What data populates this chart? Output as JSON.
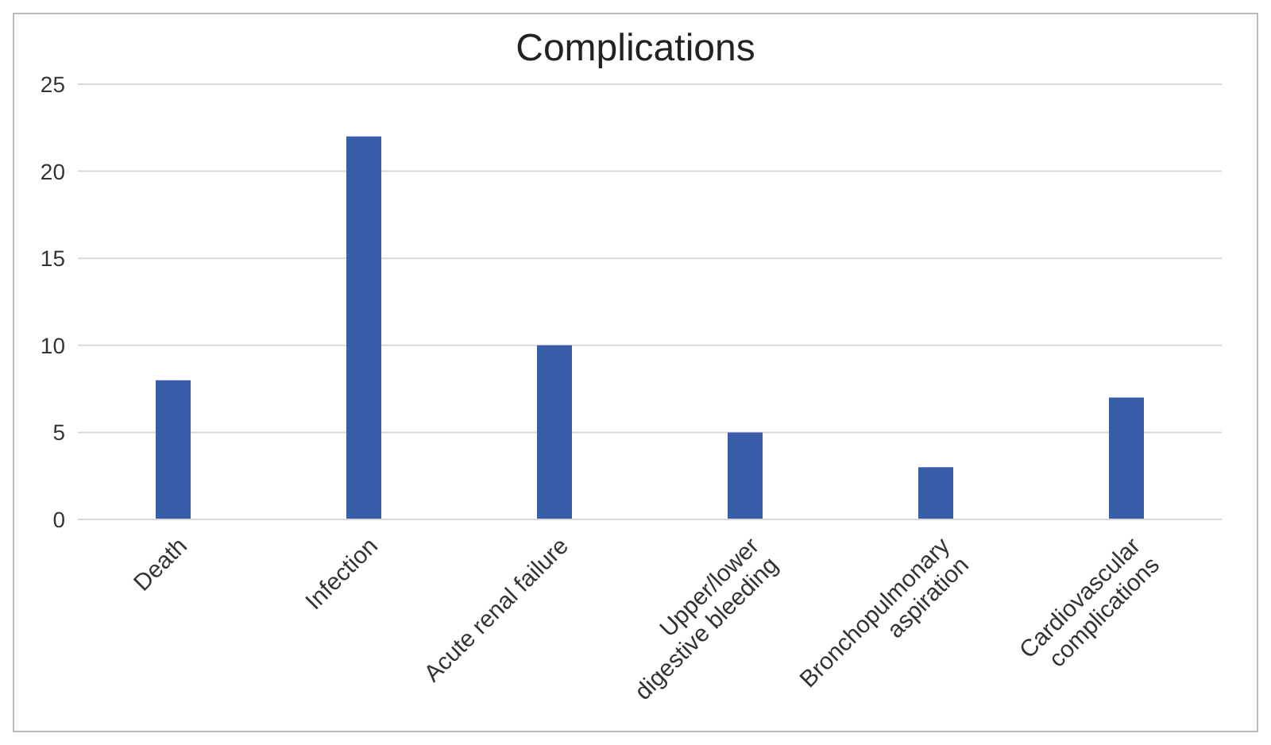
{
  "chart_data": {
    "type": "bar",
    "title": "Complications",
    "categories": [
      "Death",
      "Infection",
      "Acute renal failure",
      "Upper/lower digestive bleeding",
      "Bronchopulmonary aspiration",
      "Cardiovascular complications"
    ],
    "values": [
      8,
      22,
      10,
      5,
      3,
      7
    ],
    "color": "#3a5daa",
    "ylim": [
      0,
      25
    ],
    "yticks": [
      0,
      5,
      10,
      15,
      20,
      25
    ],
    "grid": "y"
  }
}
